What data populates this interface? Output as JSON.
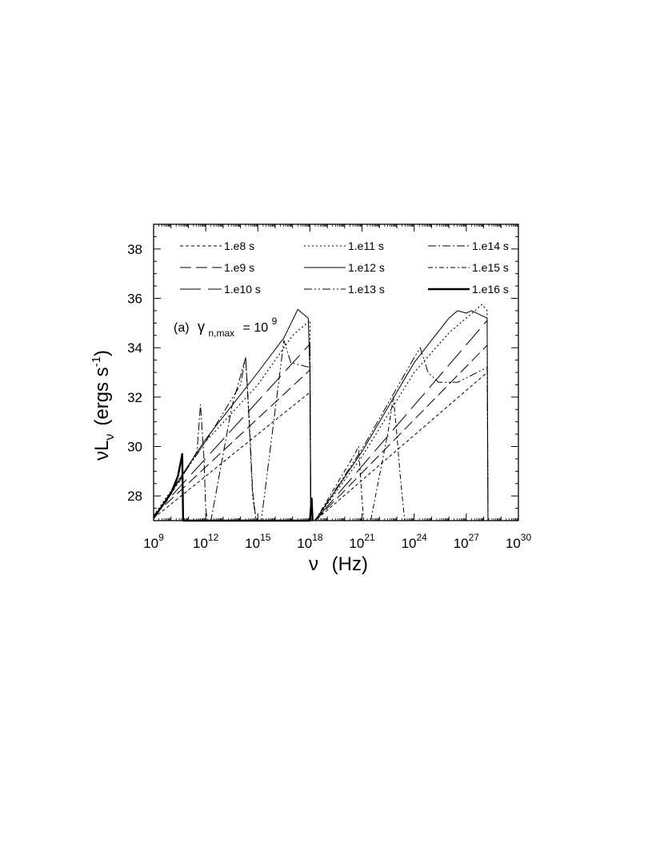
{
  "chart_data": {
    "type": "line",
    "title": "",
    "annotation": {
      "prefix": "(a)",
      "symbol": "γ",
      "subscript": "n,max",
      "rhs": "= 10",
      "exponent": "9"
    },
    "xlabel": {
      "symbol": "ν",
      "text": "(Hz)"
    },
    "ylabel": {
      "symbol": "ν",
      "L": "L",
      "sub": "ν",
      "text": "(ergs s",
      "exp": "-1",
      "close": ")"
    },
    "x_scale": "log",
    "xlim_log10": [
      9,
      30
    ],
    "x_ticks": [
      {
        "base": "10",
        "exp": "9",
        "log": 9
      },
      {
        "base": "10",
        "exp": "12",
        "log": 12
      },
      {
        "base": "10",
        "exp": "15",
        "log": 15
      },
      {
        "base": "10",
        "exp": "18",
        "log": 18
      },
      {
        "base": "10",
        "exp": "21",
        "log": 21
      },
      {
        "base": "10",
        "exp": "24",
        "log": 24
      },
      {
        "base": "10",
        "exp": "27",
        "log": 27
      },
      {
        "base": "10",
        "exp": "30",
        "log": 30
      }
    ],
    "ylim": [
      27,
      39
    ],
    "y_ticks": [
      28,
      30,
      32,
      34,
      36,
      38
    ],
    "legend_position": "top",
    "series": [
      {
        "name": "1.e8 s",
        "dash": "4,3",
        "width": 1.0,
        "points": [
          [
            9,
            27.1
          ],
          [
            18,
            32.2
          ],
          [
            18.05,
            27.0
          ],
          [
            18.3,
            27.0
          ],
          [
            28.2,
            33.0
          ]
        ]
      },
      {
        "name": "1.e9 s",
        "dash": "14,6",
        "width": 1.0,
        "points": [
          [
            9,
            27.2
          ],
          [
            18,
            33.1
          ],
          [
            18.05,
            27.0
          ],
          [
            18.3,
            27.0
          ],
          [
            28.2,
            34.1
          ]
        ]
      },
      {
        "name": "1.e10 s",
        "dash": "26,9",
        "width": 1.0,
        "points": [
          [
            9,
            27.2
          ],
          [
            18,
            34.15
          ],
          [
            18.05,
            27.0
          ],
          [
            18.3,
            27.0
          ],
          [
            28.2,
            35.1
          ]
        ]
      },
      {
        "name": "1.e11 s",
        "dash": "2,3",
        "width": 1.1,
        "points": [
          [
            9,
            27.2
          ],
          [
            12,
            30.2
          ],
          [
            15,
            32.5
          ],
          [
            17,
            34.5
          ],
          [
            18,
            35.1
          ],
          [
            18.05,
            27.0
          ],
          [
            18.3,
            27.0
          ],
          [
            21,
            29.6
          ],
          [
            24,
            33.0
          ],
          [
            26.0,
            34.6
          ],
          [
            27.5,
            35.5
          ],
          [
            27.9,
            35.75
          ],
          [
            28.2,
            35.5
          ],
          [
            28.25,
            27.0
          ]
        ]
      },
      {
        "name": "1.e12 s",
        "dash": "",
        "width": 1.0,
        "points": [
          [
            9,
            27.1
          ],
          [
            12,
            30.3
          ],
          [
            15,
            33.0
          ],
          [
            16.5,
            34.4
          ],
          [
            17.3,
            35.55
          ],
          [
            17.9,
            35.2
          ],
          [
            18.0,
            33.0
          ],
          [
            18.05,
            27.0
          ],
          [
            18.3,
            27.0
          ],
          [
            21,
            29.8
          ],
          [
            24,
            33.4
          ],
          [
            26.0,
            35.2
          ],
          [
            26.5,
            35.5
          ],
          [
            27.0,
            35.4
          ],
          [
            27.3,
            35.5
          ],
          [
            28.2,
            35.2
          ],
          [
            28.25,
            27.0
          ]
        ]
      },
      {
        "name": "1.e13 s",
        "dash": "10,3,2,3,2,3",
        "width": 1.0,
        "points": [
          [
            9,
            27.1
          ],
          [
            12,
            30.2
          ],
          [
            14,
            32.5
          ],
          [
            14.3,
            33.6
          ],
          [
            14.5,
            31.0
          ],
          [
            14.7,
            28.0
          ],
          [
            14.9,
            27.0
          ],
          [
            15.2,
            27.0
          ],
          [
            16.5,
            34.3
          ],
          [
            16.9,
            33.4
          ],
          [
            18.0,
            33.2
          ],
          [
            18.05,
            27.0
          ],
          [
            18.3,
            27.0
          ],
          [
            21,
            29.9
          ],
          [
            24,
            33.6
          ],
          [
            24.35,
            34.0
          ],
          [
            24.8,
            33.0
          ],
          [
            25.4,
            32.6
          ],
          [
            26.5,
            32.6
          ],
          [
            28.2,
            33.2
          ],
          [
            28.25,
            27.0
          ]
        ]
      },
      {
        "name": "1.e14 s",
        "dash": "10,3,2,3",
        "width": 1.0,
        "points": [
          [
            9,
            27.1
          ],
          [
            10.5,
            28.6
          ],
          [
            11.5,
            29.8
          ],
          [
            11.7,
            31.7
          ],
          [
            11.9,
            29.5
          ],
          [
            12.0,
            27.5
          ],
          [
            12.1,
            27.0
          ],
          [
            12.3,
            27.0
          ],
          [
            13.5,
            31.6
          ],
          [
            14.3,
            33.6
          ],
          [
            14.5,
            31.2
          ],
          [
            14.7,
            28.2
          ],
          [
            14.9,
            27.0
          ]
        ]
      },
      {
        "name": "1.e15 s",
        "dash": "6,3,2,3",
        "width": 1.0,
        "points": [
          [
            18.3,
            27.0
          ],
          [
            20.5,
            29.6
          ],
          [
            20.8,
            30.0
          ],
          [
            21.0,
            27.8
          ],
          [
            21.1,
            27.0
          ],
          [
            21.5,
            27.0
          ],
          [
            22.5,
            30.6
          ],
          [
            22.8,
            32.0
          ],
          [
            23.0,
            30.5
          ],
          [
            23.2,
            28.8
          ],
          [
            23.45,
            27.0
          ]
        ]
      },
      {
        "name": "1.e16 s",
        "dash": "",
        "width": 2.4,
        "points": [
          [
            9,
            27.1
          ],
          [
            10,
            28.1
          ],
          [
            10.4,
            28.8
          ],
          [
            10.6,
            29.5
          ],
          [
            10.65,
            29.7
          ],
          [
            10.7,
            27.0
          ],
          [
            18.0,
            27.0
          ],
          [
            18.1,
            27.9
          ],
          [
            18.15,
            27.0
          ]
        ]
      }
    ]
  }
}
